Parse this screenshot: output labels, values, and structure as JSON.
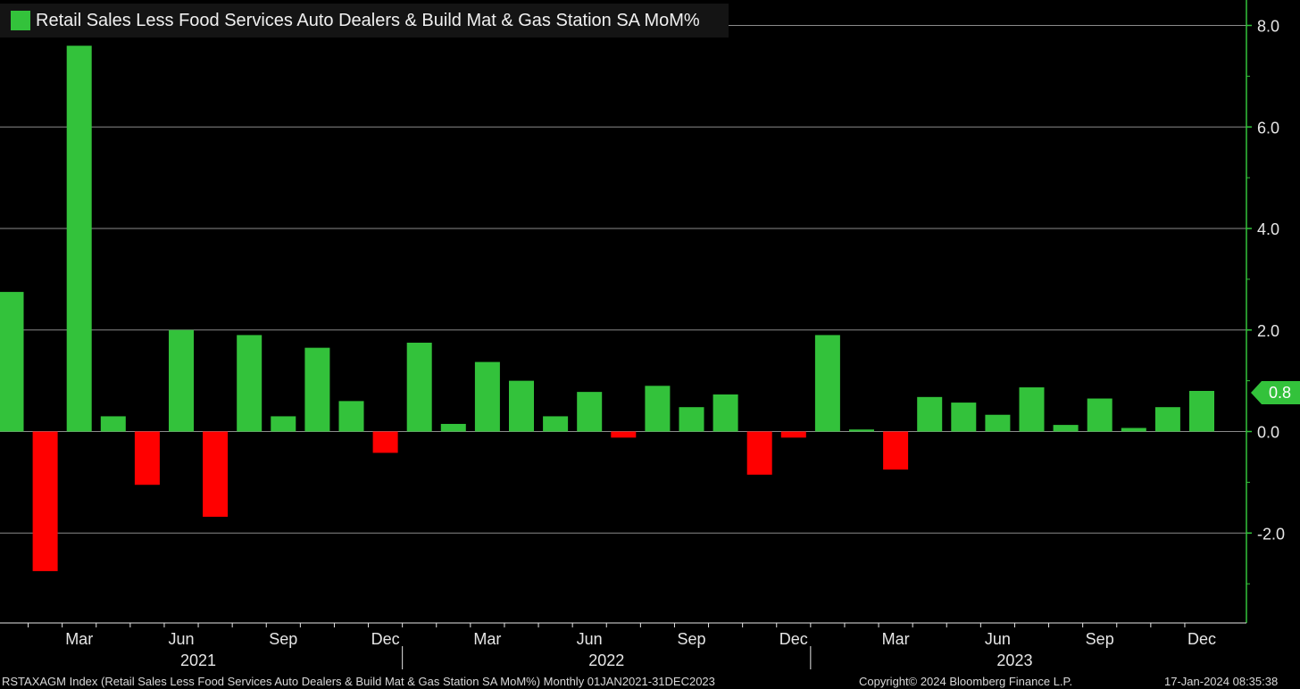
{
  "colors": {
    "positive": "#33c23b",
    "negative": "#ff0000",
    "axis": "#33c23b",
    "grid": "#8a8a8a",
    "background": "#000000",
    "text": "#e6e6e6"
  },
  "legend": {
    "label": "Retail Sales Less Food Services Auto Dealers & Build Mat & Gas Station SA MoM%"
  },
  "last_value": {
    "label": "0.8"
  },
  "footer": {
    "index_info": "RSTAXAGM Index (Retail Sales Less Food Services Auto Dealers & Build Mat & Gas Station SA MoM%)  Monthly 01JAN2021-31DEC2023",
    "copyright": "Copyright© 2024 Bloomberg Finance L.P.",
    "timestamp": "17-Jan-2024 08:35:38"
  },
  "chart_data": {
    "type": "bar",
    "title": "",
    "xlabel": "",
    "ylabel": "",
    "ylim": [
      -3.7,
      8.5
    ],
    "yticks": [
      -2.0,
      0.0,
      2.0,
      4.0,
      6.0,
      8.0
    ],
    "ytick_labels": [
      "-2.0",
      "0.0",
      "2.0",
      "4.0",
      "6.0",
      "8.0"
    ],
    "grid": true,
    "y_axis_side": "right",
    "categories": [
      "Jan 2021",
      "Feb 2021",
      "Mar 2021",
      "Apr 2021",
      "May 2021",
      "Jun 2021",
      "Jul 2021",
      "Aug 2021",
      "Sep 2021",
      "Oct 2021",
      "Nov 2021",
      "Dec 2021",
      "Jan 2022",
      "Feb 2022",
      "Mar 2022",
      "Apr 2022",
      "May 2022",
      "Jun 2022",
      "Jul 2022",
      "Aug 2022",
      "Sep 2022",
      "Oct 2022",
      "Nov 2022",
      "Dec 2022",
      "Jan 2023",
      "Feb 2023",
      "Mar 2023",
      "Apr 2023",
      "May 2023",
      "Jun 2023",
      "Jul 2023",
      "Aug 2023",
      "Sep 2023",
      "Oct 2023",
      "Nov 2023",
      "Dec 2023"
    ],
    "values": [
      2.75,
      -2.75,
      7.6,
      0.3,
      -1.05,
      2.0,
      -1.68,
      1.9,
      0.3,
      1.65,
      0.6,
      -0.42,
      1.75,
      0.15,
      1.37,
      1.0,
      0.3,
      0.78,
      -0.12,
      0.9,
      0.48,
      0.73,
      -0.85,
      -0.12,
      1.9,
      0.04,
      -0.75,
      0.68,
      0.57,
      0.33,
      0.87,
      0.13,
      0.65,
      0.07,
      0.48,
      0.8
    ],
    "x_tick_labels": [
      {
        "index": 2,
        "label": "Mar"
      },
      {
        "index": 5,
        "label": "Jun"
      },
      {
        "index": 8,
        "label": "Sep"
      },
      {
        "index": 11,
        "label": "Dec"
      },
      {
        "index": 14,
        "label": "Mar"
      },
      {
        "index": 17,
        "label": "Jun"
      },
      {
        "index": 20,
        "label": "Sep"
      },
      {
        "index": 23,
        "label": "Dec"
      },
      {
        "index": 26,
        "label": "Mar"
      },
      {
        "index": 29,
        "label": "Jun"
      },
      {
        "index": 32,
        "label": "Sep"
      },
      {
        "index": 35,
        "label": "Dec"
      }
    ],
    "year_labels": [
      {
        "label": "2021",
        "center_index": 5.5
      },
      {
        "label": "2022",
        "center_index": 17.5
      },
      {
        "label": "2023",
        "center_index": 29.5
      }
    ],
    "year_separators": [
      11.5,
      23.5
    ]
  }
}
